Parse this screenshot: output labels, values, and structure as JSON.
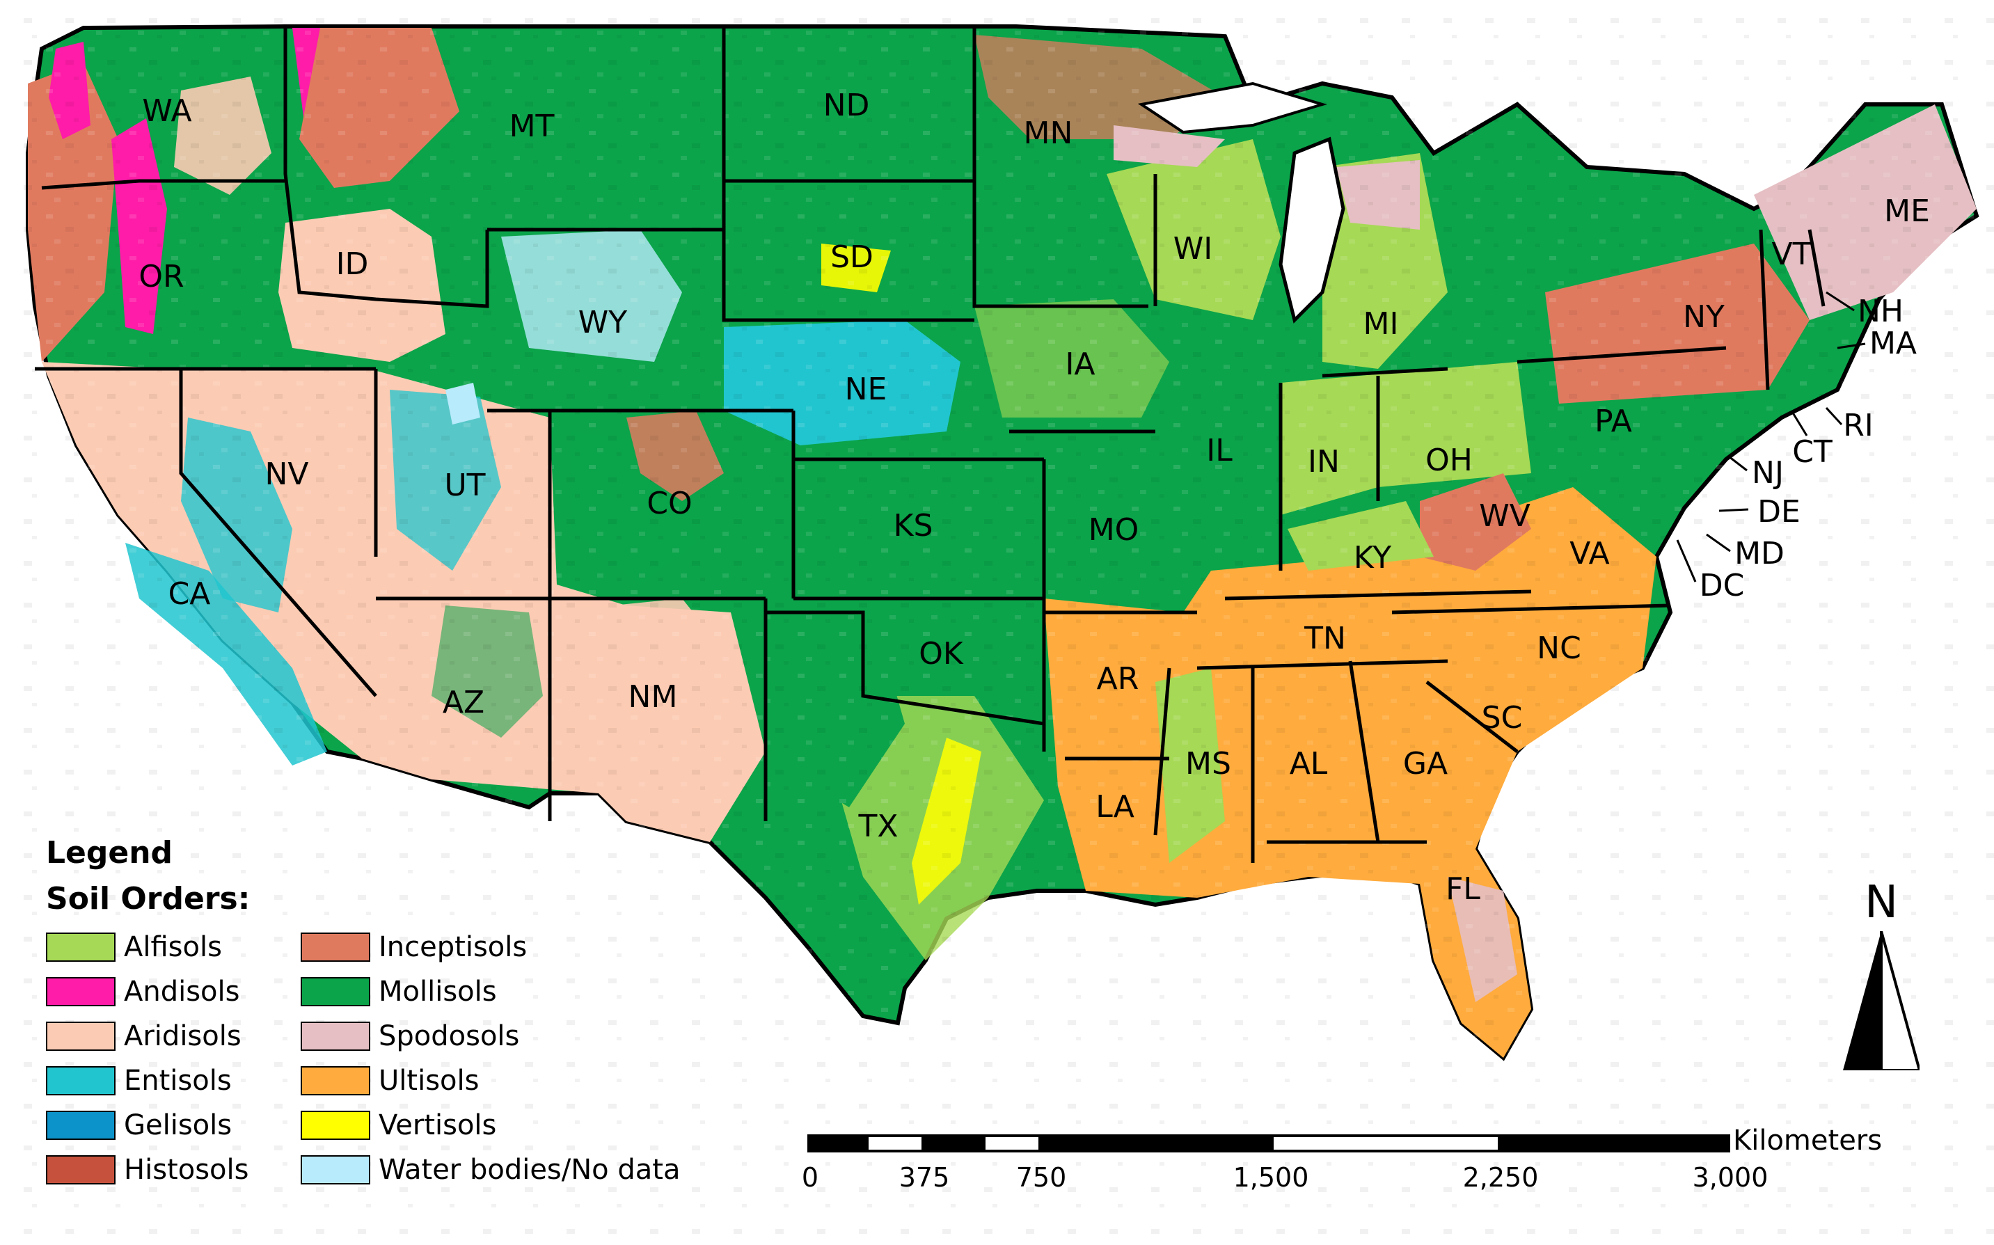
{
  "legend": {
    "title": "Legend",
    "subtitle": "Soil Orders:",
    "items": [
      {
        "label": "Alfisols",
        "color": "#a6d955"
      },
      {
        "label": "Inceptisols",
        "color": "#e07a5f"
      },
      {
        "label": "Andisols",
        "color": "#ff1ca8"
      },
      {
        "label": "Mollisols",
        "color": "#0ba44a"
      },
      {
        "label": "Aridisols",
        "color": "#fccbb3"
      },
      {
        "label": "Spodosols",
        "color": "#e5bfc3"
      },
      {
        "label": "Entisols",
        "color": "#21c5cf"
      },
      {
        "label": "Ultisols",
        "color": "#ffab3d"
      },
      {
        "label": "Gelisols",
        "color": "#0c93c9"
      },
      {
        "label": "Vertisols",
        "color": "#ffff00"
      },
      {
        "label": "Histosols",
        "color": "#c6523d"
      },
      {
        "label": "Water bodies/No data",
        "color": "#b8ebfb"
      }
    ]
  },
  "states": [
    "WA",
    "OR",
    "ID",
    "MT",
    "ND",
    "MN",
    "SD",
    "WY",
    "NE",
    "WI",
    "MI",
    "ME",
    "VT",
    "NH",
    "NY",
    "MA",
    "IA",
    "CT",
    "RI",
    "PA",
    "NJ",
    "NV",
    "UT",
    "CO",
    "IL",
    "IN",
    "OH",
    "KS",
    "MO",
    "DE",
    "WV",
    "MD",
    "VA",
    "KY",
    "DC",
    "CA",
    "TN",
    "NC",
    "OK",
    "AR",
    "AZ",
    "NM",
    "SC",
    "MS",
    "AL",
    "GA",
    "LA",
    "TX",
    "FL"
  ],
  "north_arrow": {
    "label": "N"
  },
  "scale_bar": {
    "unit": "Kilometers",
    "ticks": [
      "0",
      "375",
      "750",
      "1,500",
      "2,250",
      "3,000"
    ]
  }
}
